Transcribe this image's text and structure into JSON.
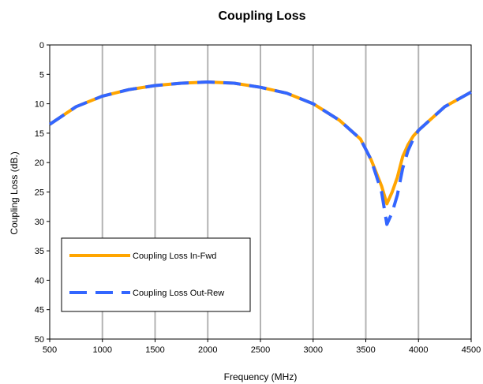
{
  "chart_data": {
    "type": "line",
    "title": "Coupling Loss",
    "xlabel": "Frequency (MHz)",
    "ylabel": "Coupling Loss (dB.)",
    "xlim": [
      500,
      4500
    ],
    "ylim": [
      0,
      50
    ],
    "y_inverted": true,
    "x_ticks": [
      500,
      1000,
      1500,
      2000,
      2500,
      3000,
      3500,
      4000,
      4500
    ],
    "y_ticks": [
      0,
      5,
      10,
      15,
      20,
      25,
      30,
      35,
      40,
      45,
      50
    ],
    "grid": "vertical",
    "legend_position": "bottom-left",
    "series": [
      {
        "name": "Coupling Loss In-Fwd",
        "color": "#FFA500",
        "style": "solid",
        "x": [
          500,
          750,
          1000,
          1250,
          1500,
          1750,
          2000,
          2250,
          2500,
          2750,
          3000,
          3250,
          3450,
          3550,
          3650,
          3700,
          3750,
          3800,
          3850,
          3900,
          3950,
          4000,
          4250,
          4500
        ],
        "y": [
          13.5,
          10.5,
          8.7,
          7.6,
          6.9,
          6.5,
          6.3,
          6.5,
          7.2,
          8.2,
          10.0,
          12.8,
          16.0,
          19.5,
          24.0,
          27.0,
          25.0,
          22.5,
          19.0,
          17.0,
          15.5,
          14.5,
          10.5,
          8.0
        ]
      },
      {
        "name": "Coupling Loss Out-Rew",
        "color": "#3366FF",
        "style": "dashed",
        "x": [
          500,
          750,
          1000,
          1250,
          1500,
          1750,
          2000,
          2250,
          2500,
          2750,
          3000,
          3250,
          3450,
          3550,
          3650,
          3700,
          3750,
          3800,
          3850,
          3900,
          3950,
          4000,
          4250,
          4500
        ],
        "y": [
          13.5,
          10.5,
          8.7,
          7.6,
          6.9,
          6.5,
          6.3,
          6.5,
          7.2,
          8.2,
          10.0,
          12.8,
          16.0,
          19.5,
          25.0,
          30.5,
          28.5,
          25.5,
          21.0,
          18.0,
          16.0,
          14.5,
          10.5,
          8.0
        ]
      }
    ]
  }
}
